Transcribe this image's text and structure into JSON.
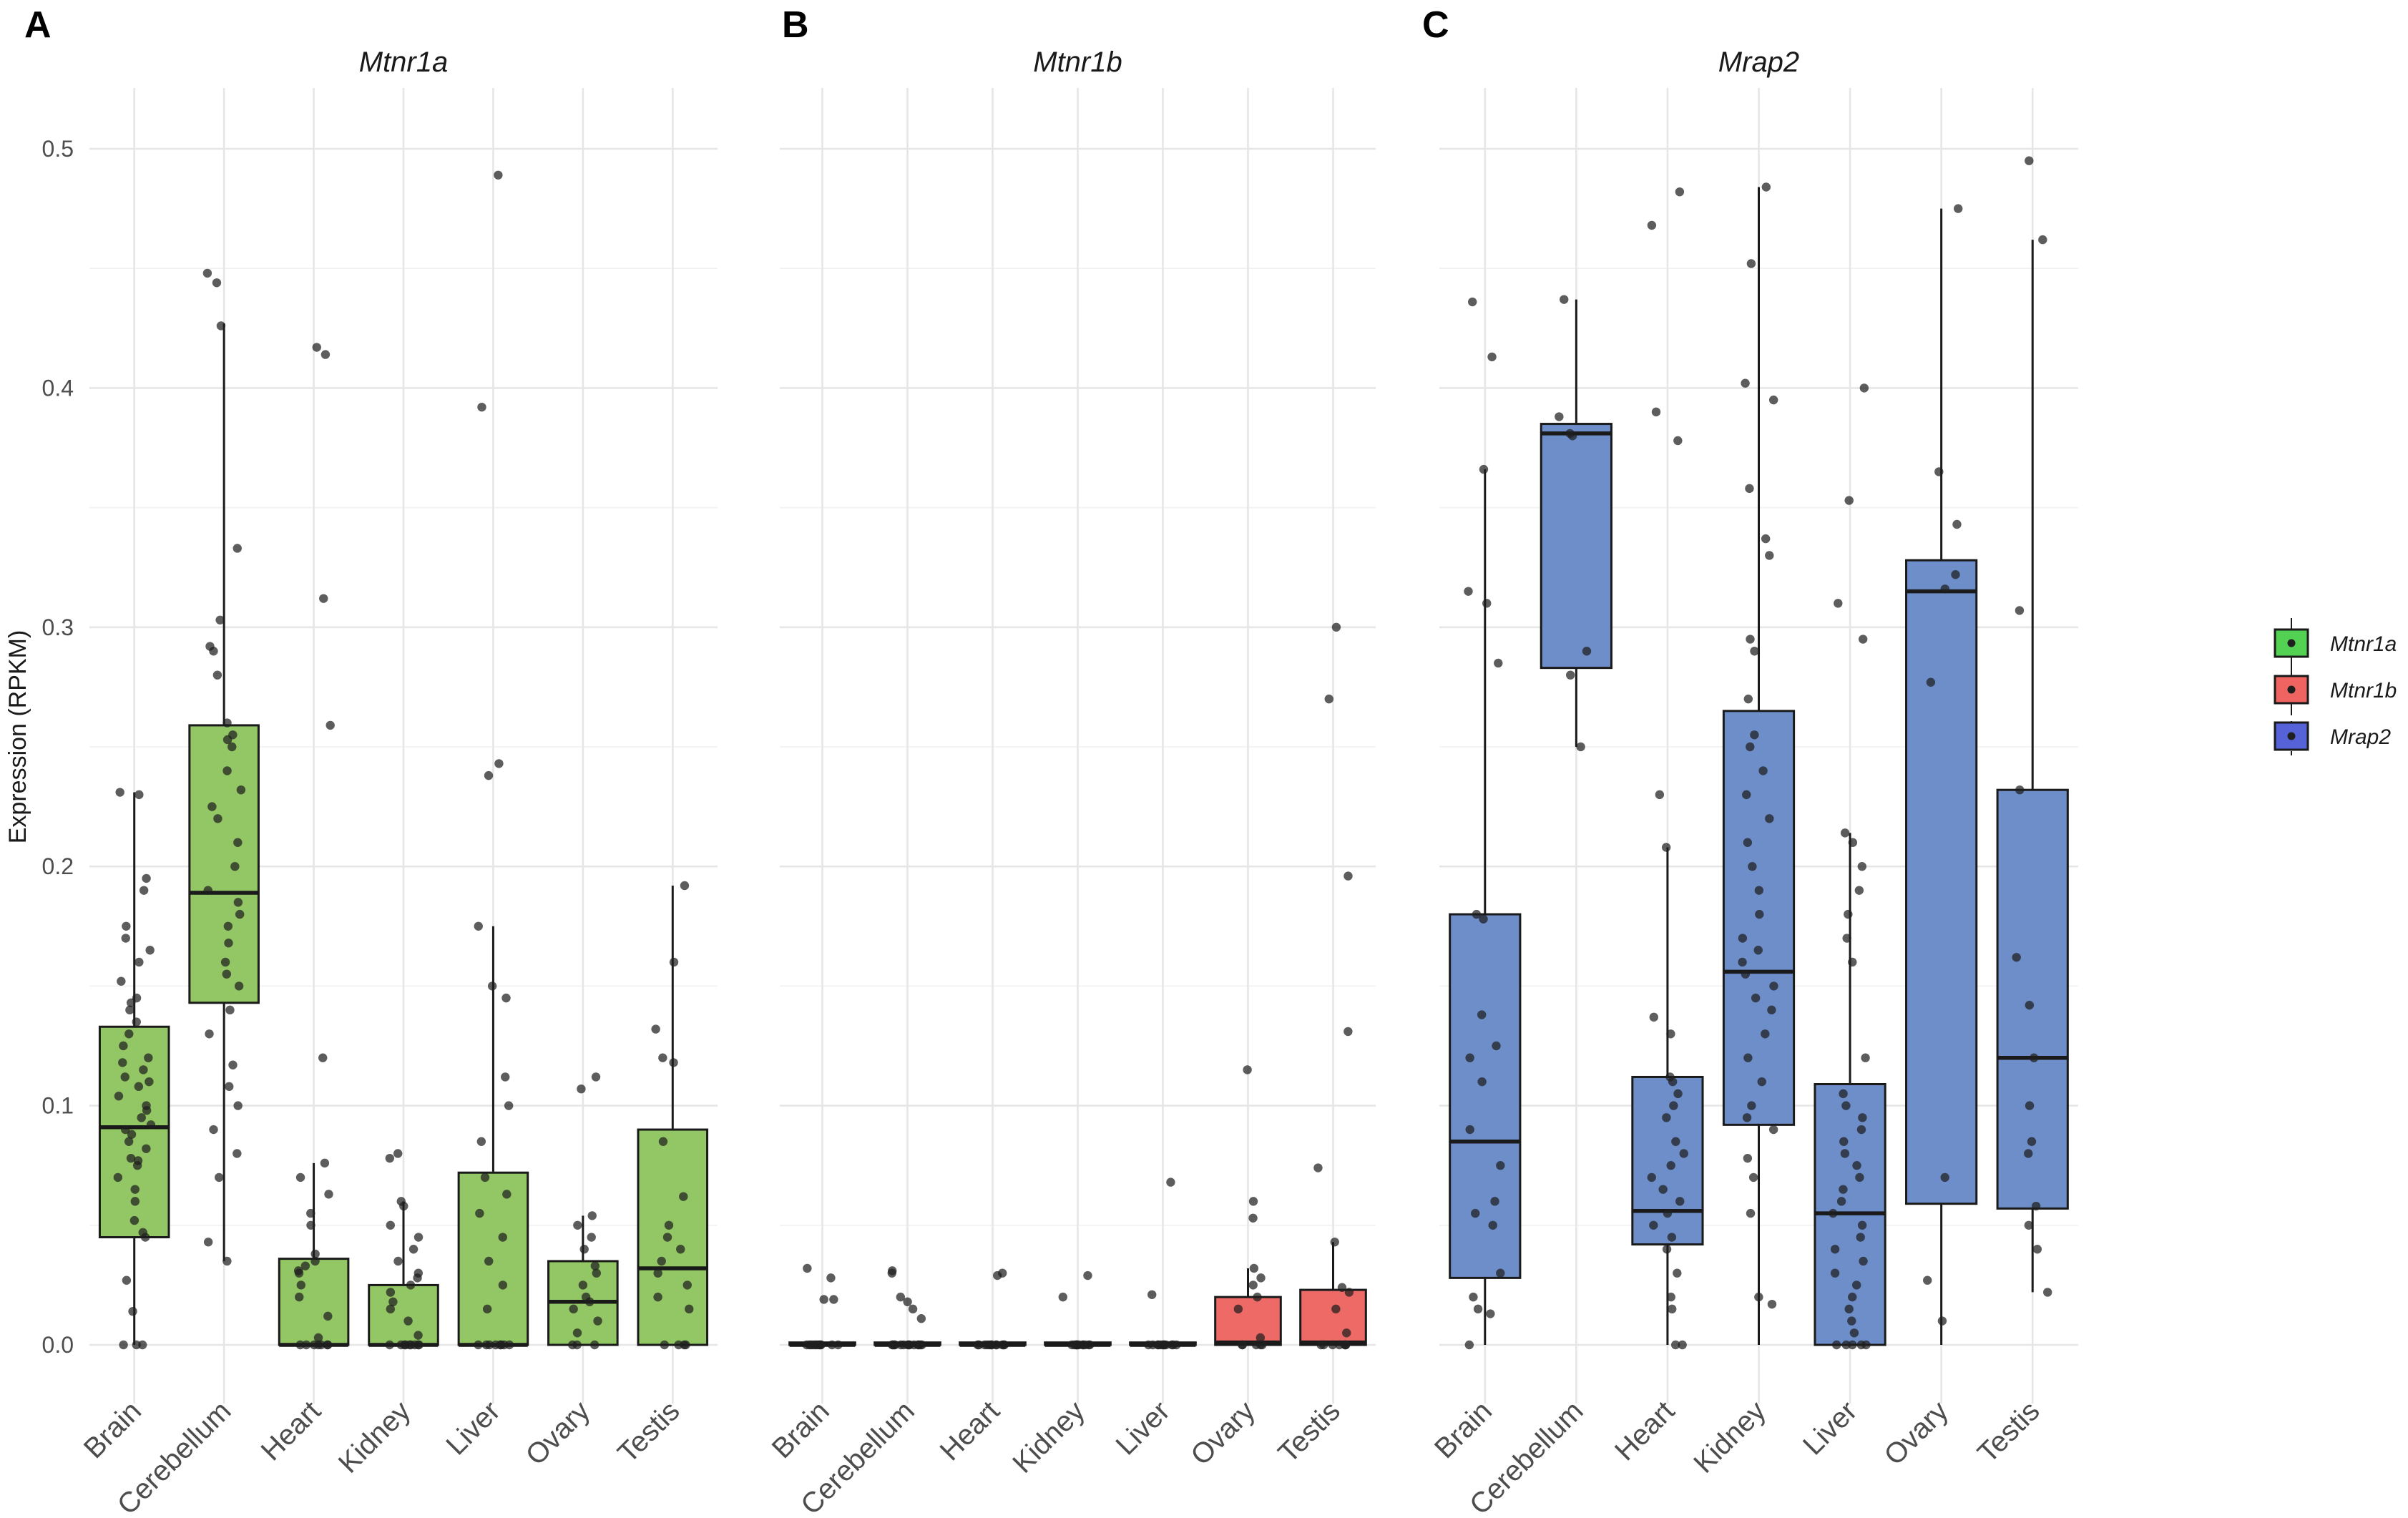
{
  "chart_data": [
    {
      "type": "box",
      "panel": "A",
      "title": "Mtnr1a",
      "ylabel": "Expression (RPKM)",
      "ylim": [
        -0.0065,
        0.515
      ],
      "yticks": [
        "0.0",
        "0.1",
        "0.2",
        "0.3",
        "0.4",
        "0.5"
      ],
      "categories": [
        "Brain",
        "Cerebellum",
        "Heart",
        "Kidney",
        "Liver",
        "Ovary",
        "Testis"
      ],
      "color": "#93c664",
      "boxes": [
        {
          "q1": 0.045,
          "median": 0.091,
          "q3": 0.133,
          "whisker_low": 0.0,
          "whisker_high": 0.231
        },
        {
          "q1": 0.143,
          "median": 0.189,
          "q3": 0.259,
          "whisker_low": 0.035,
          "whisker_high": 0.427
        },
        {
          "q1": 0.0,
          "median": 0.0,
          "q3": 0.036,
          "whisker_low": 0.0,
          "whisker_high": 0.076
        },
        {
          "q1": 0.0,
          "median": 0.0,
          "q3": 0.025,
          "whisker_low": 0.0,
          "whisker_high": 0.06
        },
        {
          "q1": 0.0,
          "median": 0.0,
          "q3": 0.072,
          "whisker_low": 0.0,
          "whisker_high": 0.175
        },
        {
          "q1": 0.0,
          "median": 0.018,
          "q3": 0.035,
          "whisker_low": 0.0,
          "whisker_high": 0.054
        },
        {
          "q1": 0.0,
          "median": 0.032,
          "q3": 0.09,
          "whisker_low": 0.0,
          "whisker_high": 0.192
        }
      ],
      "points": [
        [
          0.0,
          0.0,
          0.0,
          0.014,
          0.027,
          0.045,
          0.047,
          0.052,
          0.06,
          0.065,
          0.07,
          0.075,
          0.077,
          0.078,
          0.082,
          0.085,
          0.088,
          0.09,
          0.092,
          0.095,
          0.098,
          0.1,
          0.104,
          0.108,
          0.11,
          0.112,
          0.115,
          0.118,
          0.12,
          0.125,
          0.13,
          0.135,
          0.14,
          0.143,
          0.145,
          0.152,
          0.16,
          0.165,
          0.17,
          0.175,
          0.19,
          0.195,
          0.23,
          0.231
        ],
        [
          0.035,
          0.043,
          0.07,
          0.08,
          0.09,
          0.1,
          0.108,
          0.117,
          0.13,
          0.14,
          0.15,
          0.155,
          0.16,
          0.168,
          0.175,
          0.18,
          0.185,
          0.19,
          0.2,
          0.21,
          0.22,
          0.225,
          0.232,
          0.24,
          0.25,
          0.253,
          0.255,
          0.26,
          0.28,
          0.29,
          0.292,
          0.303,
          0.333,
          0.426,
          0.444,
          0.448
        ],
        [
          0.0,
          0.0,
          0.0,
          0.0,
          0.0,
          0.0,
          0.0,
          0.003,
          0.012,
          0.02,
          0.025,
          0.03,
          0.031,
          0.033,
          0.035,
          0.038,
          0.05,
          0.055,
          0.063,
          0.07,
          0.076,
          0.12,
          0.259,
          0.312,
          0.414,
          0.417
        ],
        [
          0.0,
          0.0,
          0.0,
          0.0,
          0.0,
          0.0,
          0.0,
          0.0,
          0.0,
          0.004,
          0.01,
          0.015,
          0.018,
          0.022,
          0.025,
          0.028,
          0.03,
          0.035,
          0.04,
          0.045,
          0.05,
          0.058,
          0.06,
          0.078,
          0.08
        ],
        [
          0.0,
          0.0,
          0.0,
          0.0,
          0.0,
          0.0,
          0.0,
          0.0,
          0.015,
          0.025,
          0.035,
          0.045,
          0.055,
          0.063,
          0.07,
          0.085,
          0.1,
          0.112,
          0.145,
          0.15,
          0.175,
          0.238,
          0.243,
          0.392,
          0.489
        ],
        [
          0.0,
          0.0,
          0.0,
          0.005,
          0.01,
          0.015,
          0.018,
          0.02,
          0.025,
          0.03,
          0.033,
          0.04,
          0.045,
          0.05,
          0.054,
          0.107,
          0.112
        ],
        [
          0.0,
          0.0,
          0.0,
          0.0,
          0.015,
          0.02,
          0.025,
          0.03,
          0.035,
          0.04,
          0.045,
          0.05,
          0.062,
          0.085,
          0.118,
          0.12,
          0.132,
          0.16,
          0.192
        ]
      ]
    },
    {
      "type": "box",
      "panel": "B",
      "title": "Mtnr1b",
      "ylim": [
        -0.0065,
        0.515
      ],
      "categories": [
        "Brain",
        "Cerebellum",
        "Heart",
        "Kidney",
        "Liver",
        "Ovary",
        "Testis"
      ],
      "color": "#ee6a66",
      "boxes": [
        {
          "q1": 0.0,
          "median": 0.0,
          "q3": 0.001,
          "whisker_low": 0.0,
          "whisker_high": 0.001
        },
        {
          "q1": 0.0,
          "median": 0.0,
          "q3": 0.001,
          "whisker_low": 0.0,
          "whisker_high": 0.001
        },
        {
          "q1": 0.0,
          "median": 0.0,
          "q3": 0.001,
          "whisker_low": 0.0,
          "whisker_high": 0.001
        },
        {
          "q1": 0.0,
          "median": 0.0,
          "q3": 0.001,
          "whisker_low": 0.0,
          "whisker_high": 0.001
        },
        {
          "q1": 0.0,
          "median": 0.0,
          "q3": 0.001,
          "whisker_low": 0.0,
          "whisker_high": 0.001
        },
        {
          "q1": 0.0,
          "median": 0.001,
          "q3": 0.02,
          "whisker_low": 0.0,
          "whisker_high": 0.032
        },
        {
          "q1": 0.0,
          "median": 0.001,
          "q3": 0.023,
          "whisker_low": 0.0,
          "whisker_high": 0.043
        }
      ],
      "points": [
        [
          0.0,
          0.0,
          0.0,
          0.0,
          0.0,
          0.0,
          0.0,
          0.0,
          0.0,
          0.0,
          0.0,
          0.0,
          0.019,
          0.019,
          0.028,
          0.032
        ],
        [
          0.0,
          0.0,
          0.0,
          0.0,
          0.0,
          0.0,
          0.0,
          0.0,
          0.0,
          0.0,
          0.0,
          0.0,
          0.0,
          0.0,
          0.011,
          0.015,
          0.018,
          0.02,
          0.03,
          0.031
        ],
        [
          0.0,
          0.0,
          0.0,
          0.0,
          0.0,
          0.0,
          0.0,
          0.0,
          0.0,
          0.0,
          0.0,
          0.0,
          0.029,
          0.03
        ],
        [
          0.0,
          0.0,
          0.0,
          0.0,
          0.0,
          0.0,
          0.0,
          0.0,
          0.0,
          0.0,
          0.0,
          0.0,
          0.02,
          0.029
        ],
        [
          0.0,
          0.0,
          0.0,
          0.0,
          0.0,
          0.0,
          0.0,
          0.0,
          0.0,
          0.0,
          0.0,
          0.0,
          0.021,
          0.068
        ],
        [
          0.0,
          0.0,
          0.0,
          0.0,
          0.0,
          0.003,
          0.015,
          0.02,
          0.025,
          0.028,
          0.032,
          0.053,
          0.06,
          0.115
        ],
        [
          0.0,
          0.0,
          0.0,
          0.0,
          0.0,
          0.0,
          0.0,
          0.005,
          0.015,
          0.022,
          0.024,
          0.043,
          0.074,
          0.131,
          0.196,
          0.27,
          0.3
        ]
      ]
    },
    {
      "type": "box",
      "panel": "C",
      "title": "Mrap2",
      "ylim": [
        -0.0065,
        0.515
      ],
      "categories": [
        "Brain",
        "Cerebellum",
        "Heart",
        "Kidney",
        "Liver",
        "Ovary",
        "Testis"
      ],
      "color": "#6e8ec9",
      "boxes": [
        {
          "q1": 0.028,
          "median": 0.085,
          "q3": 0.18,
          "whisker_low": 0.0,
          "whisker_high": 0.366
        },
        {
          "q1": 0.283,
          "median": 0.381,
          "q3": 0.385,
          "whisker_low": 0.25,
          "whisker_high": 0.437
        },
        {
          "q1": 0.042,
          "median": 0.056,
          "q3": 0.112,
          "whisker_low": 0.0,
          "whisker_high": 0.208
        },
        {
          "q1": 0.092,
          "median": 0.156,
          "q3": 0.265,
          "whisker_low": 0.0,
          "whisker_high": 0.484
        },
        {
          "q1": 0.0,
          "median": 0.055,
          "q3": 0.109,
          "whisker_low": 0.0,
          "whisker_high": 0.214
        },
        {
          "q1": 0.059,
          "median": 0.315,
          "q3": 0.328,
          "whisker_low": 0.0,
          "whisker_high": 0.475
        },
        {
          "q1": 0.057,
          "median": 0.12,
          "q3": 0.232,
          "whisker_low": 0.022,
          "whisker_high": 0.462
        }
      ],
      "points": [
        [
          0.0,
          0.013,
          0.015,
          0.02,
          0.03,
          0.05,
          0.055,
          0.06,
          0.075,
          0.09,
          0.11,
          0.12,
          0.125,
          0.138,
          0.178,
          0.18,
          0.285,
          0.31,
          0.315,
          0.366,
          0.413,
          0.436
        ],
        [
          0.25,
          0.28,
          0.29,
          0.38,
          0.381,
          0.388,
          0.437
        ],
        [
          0.0,
          0.0,
          0.015,
          0.02,
          0.03,
          0.04,
          0.045,
          0.05,
          0.055,
          0.06,
          0.065,
          0.07,
          0.075,
          0.08,
          0.085,
          0.095,
          0.1,
          0.105,
          0.11,
          0.112,
          0.13,
          0.137,
          0.208,
          0.23,
          0.378,
          0.39,
          0.468,
          0.482
        ],
        [
          0.017,
          0.02,
          0.055,
          0.07,
          0.078,
          0.09,
          0.095,
          0.1,
          0.11,
          0.12,
          0.13,
          0.14,
          0.145,
          0.15,
          0.155,
          0.16,
          0.165,
          0.17,
          0.18,
          0.19,
          0.2,
          0.21,
          0.22,
          0.23,
          0.24,
          0.25,
          0.255,
          0.27,
          0.29,
          0.295,
          0.33,
          0.337,
          0.358,
          0.395,
          0.402,
          0.452,
          0.484
        ],
        [
          0.0,
          0.0,
          0.0,
          0.0,
          0.0,
          0.005,
          0.01,
          0.015,
          0.02,
          0.025,
          0.03,
          0.035,
          0.04,
          0.045,
          0.05,
          0.055,
          0.06,
          0.065,
          0.07,
          0.075,
          0.08,
          0.085,
          0.09,
          0.095,
          0.1,
          0.105,
          0.12,
          0.16,
          0.17,
          0.18,
          0.19,
          0.2,
          0.21,
          0.214,
          0.295,
          0.31,
          0.353,
          0.4
        ],
        [
          0.01,
          0.027,
          0.07,
          0.277,
          0.316,
          0.322,
          0.343,
          0.365,
          0.475
        ],
        [
          0.022,
          0.04,
          0.05,
          0.058,
          0.08,
          0.085,
          0.1,
          0.12,
          0.142,
          0.162,
          0.232,
          0.307,
          0.462,
          0.495
        ]
      ]
    }
  ],
  "legend": {
    "items": [
      {
        "label": "Mtnr1a",
        "color": "#52d152"
      },
      {
        "label": "Mtnr1b",
        "color": "#ef6360"
      },
      {
        "label": "Mrap2",
        "color": "#5562d8"
      }
    ]
  }
}
